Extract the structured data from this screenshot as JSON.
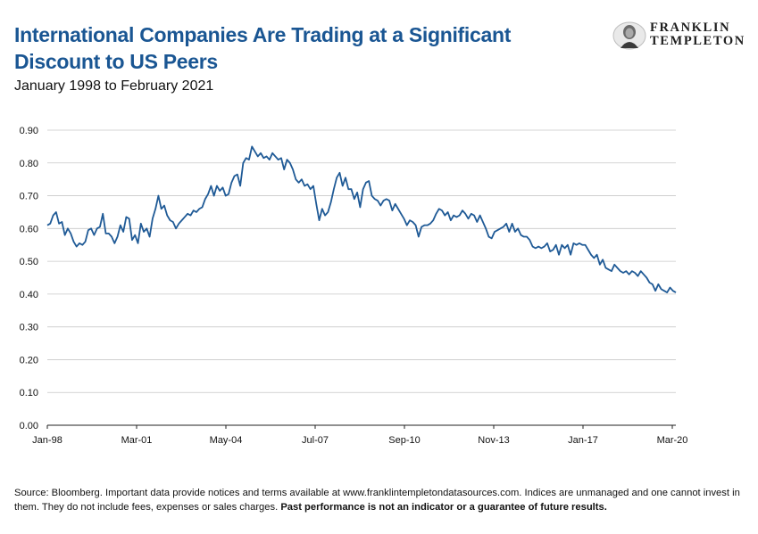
{
  "title_line1": "International Companies Are Trading at a Significant",
  "title_line2": "Discount to US Peers",
  "subtitle": "January 1998 to February 2021",
  "logo": {
    "line1": "FRANKLIN",
    "line2": "TEMPLETON"
  },
  "source_text": "Source: Bloomberg. Important data provide notices and terms available at www.franklintempletondatasources.com. Indices are unmanaged and one cannot invest in them. They do not include fees, expenses or sales charges.",
  "source_bold": "Past performance is not an indicator or a guarantee of future results.",
  "colors": {
    "title": "#1a5693",
    "line": "#1f5a96",
    "grid": "#c8c8c8"
  },
  "chart_data": {
    "type": "line",
    "x_start": "Jan-98",
    "x_end": "Feb-21",
    "x_tick_labels": [
      "Jan-98",
      "Mar-01",
      "May-04",
      "Jul-07",
      "Sep-10",
      "Nov-13",
      "Jan-17",
      "Mar-20"
    ],
    "y_tick_labels": [
      "0.00",
      "0.10",
      "0.20",
      "0.30",
      "0.40",
      "0.50",
      "0.60",
      "0.70",
      "0.80",
      "0.90"
    ],
    "ylim": [
      0,
      0.9
    ],
    "grid": true,
    "legend": "none",
    "series": [
      {
        "values": [
          0.61,
          0.615,
          0.64,
          0.65,
          0.615,
          0.62,
          0.58,
          0.6,
          0.585,
          0.56,
          0.545,
          0.555,
          0.55,
          0.56,
          0.595,
          0.6,
          0.58,
          0.6,
          0.605,
          0.645,
          0.585,
          0.585,
          0.575,
          0.555,
          0.575,
          0.61,
          0.59,
          0.635,
          0.63,
          0.565,
          0.58,
          0.555,
          0.615,
          0.59,
          0.6,
          0.575,
          0.63,
          0.66,
          0.7,
          0.66,
          0.67,
          0.64,
          0.625,
          0.62,
          0.6,
          0.615,
          0.625,
          0.635,
          0.645,
          0.64,
          0.655,
          0.65,
          0.66,
          0.665,
          0.69,
          0.705,
          0.73,
          0.7,
          0.73,
          0.715,
          0.725,
          0.7,
          0.705,
          0.74,
          0.76,
          0.765,
          0.73,
          0.8,
          0.815,
          0.81,
          0.85,
          0.835,
          0.82,
          0.83,
          0.815,
          0.82,
          0.81,
          0.83,
          0.82,
          0.81,
          0.815,
          0.78,
          0.81,
          0.8,
          0.78,
          0.75,
          0.74,
          0.75,
          0.73,
          0.735,
          0.72,
          0.73,
          0.675,
          0.625,
          0.66,
          0.64,
          0.65,
          0.68,
          0.72,
          0.755,
          0.77,
          0.73,
          0.755,
          0.72,
          0.72,
          0.69,
          0.71,
          0.665,
          0.72,
          0.74,
          0.745,
          0.7,
          0.69,
          0.685,
          0.67,
          0.685,
          0.69,
          0.685,
          0.655,
          0.675,
          0.66,
          0.645,
          0.63,
          0.61,
          0.625,
          0.62,
          0.61,
          0.575,
          0.605,
          0.61,
          0.61,
          0.615,
          0.625,
          0.645,
          0.66,
          0.655,
          0.64,
          0.65,
          0.625,
          0.64,
          0.635,
          0.64,
          0.655,
          0.645,
          0.63,
          0.645,
          0.64,
          0.62,
          0.64,
          0.62,
          0.6,
          0.575,
          0.57,
          0.59,
          0.595,
          0.6,
          0.605,
          0.615,
          0.59,
          0.615,
          0.59,
          0.6,
          0.58,
          0.575,
          0.575,
          0.565,
          0.545,
          0.54,
          0.545,
          0.54,
          0.545,
          0.555,
          0.53,
          0.535,
          0.55,
          0.52,
          0.55,
          0.54,
          0.55,
          0.52,
          0.555,
          0.55,
          0.555,
          0.55,
          0.55,
          0.535,
          0.52,
          0.51,
          0.52,
          0.49,
          0.505,
          0.48,
          0.475,
          0.47,
          0.49,
          0.48,
          0.47,
          0.465,
          0.47,
          0.46,
          0.47,
          0.465,
          0.455,
          0.47,
          0.46,
          0.45,
          0.435,
          0.43,
          0.41,
          0.43,
          0.415,
          0.41,
          0.405,
          0.42,
          0.41,
          0.405
        ]
      }
    ]
  }
}
